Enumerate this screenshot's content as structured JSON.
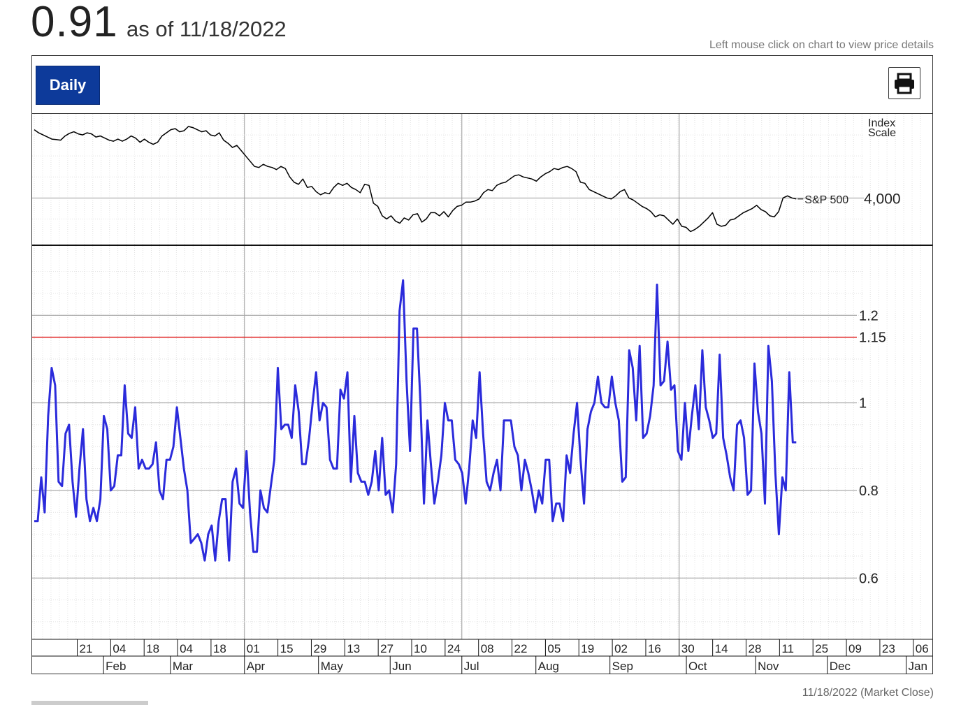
{
  "header": {
    "value": "0.91",
    "as_of": "as of 11/18/2022",
    "hint": "Left mouse click on chart to view price details"
  },
  "toolbar": {
    "daily_label": "Daily",
    "print_icon": "printer-icon"
  },
  "footer": {
    "note": "11/18/2022 (Market Close)"
  },
  "colors": {
    "indicator_line": "#2b2bdb",
    "threshold_line": "#e02020",
    "sp500_line": "#000000",
    "button": "#0d3a9a"
  },
  "chart_data": [
    {
      "type": "line",
      "panel": "top",
      "title": "",
      "scale_label_line1": "Index",
      "scale_label_line2": "Scale",
      "series": [
        {
          "name": "S&P 500",
          "values": [
            4650,
            4620,
            4600,
            4580,
            4560,
            4555,
            4550,
            4590,
            4615,
            4630,
            4610,
            4600,
            4620,
            4610,
            4580,
            4590,
            4570,
            4550,
            4540,
            4560,
            4540,
            4560,
            4590,
            4570,
            4530,
            4560,
            4530,
            4510,
            4530,
            4590,
            4620,
            4650,
            4660,
            4630,
            4640,
            4680,
            4670,
            4650,
            4630,
            4640,
            4600,
            4590,
            4620,
            4550,
            4520,
            4480,
            4500,
            4450,
            4400,
            4350,
            4300,
            4290,
            4320,
            4300,
            4290,
            4270,
            4300,
            4280,
            4200,
            4150,
            4130,
            4180,
            4100,
            4110,
            4060,
            4030,
            4050,
            4040,
            4100,
            4140,
            4120,
            4140,
            4100,
            4080,
            4050,
            4130,
            4120,
            3950,
            3920,
            3830,
            3800,
            3830,
            3780,
            3760,
            3810,
            3790,
            3840,
            3850,
            3770,
            3800,
            3860,
            3860,
            3830,
            3870,
            3820,
            3880,
            3920,
            3930,
            3960,
            3960,
            3970,
            3990,
            4050,
            4080,
            4070,
            4120,
            4140,
            4150,
            4180,
            4210,
            4220,
            4200,
            4190,
            4180,
            4160,
            4200,
            4230,
            4250,
            4280,
            4270,
            4290,
            4300,
            4280,
            4250,
            4150,
            4140,
            4080,
            4060,
            4040,
            4020,
            4000,
            3990,
            4020,
            4060,
            4080,
            4000,
            3980,
            3950,
            3920,
            3900,
            3870,
            3820,
            3840,
            3830,
            3790,
            3750,
            3800,
            3730,
            3720,
            3680,
            3700,
            3730,
            3770,
            3810,
            3860,
            3750,
            3730,
            3740,
            3790,
            3800,
            3830,
            3860,
            3880,
            3900,
            3930,
            3890,
            3870,
            3830,
            3820,
            3870,
            4000,
            4020,
            4000,
            3990
          ],
          "x_start": "2022-01-03",
          "x_end": "2022-11-18"
        }
      ],
      "y_ticks": [
        "4,000"
      ],
      "annotation": "S&P 500"
    },
    {
      "type": "line",
      "panel": "bottom",
      "series": [
        {
          "name": "",
          "values": [
            0.73,
            0.73,
            0.83,
            0.75,
            0.97,
            1.08,
            1.04,
            0.82,
            0.81,
            0.93,
            0.95,
            0.82,
            0.74,
            0.85,
            0.94,
            0.78,
            0.73,
            0.76,
            0.73,
            0.78,
            0.97,
            0.94,
            0.8,
            0.81,
            0.88,
            0.88,
            1.04,
            0.93,
            0.92,
            0.99,
            0.85,
            0.87,
            0.85,
            0.85,
            0.86,
            0.91,
            0.8,
            0.78,
            0.87,
            0.87,
            0.9,
            0.99,
            0.92,
            0.85,
            0.8,
            0.68,
            0.69,
            0.7,
            0.68,
            0.64,
            0.7,
            0.72,
            0.64,
            0.73,
            0.78,
            0.78,
            0.64,
            0.82,
            0.85,
            0.77,
            0.76,
            0.89,
            0.75,
            0.66,
            0.66,
            0.8,
            0.76,
            0.75,
            0.81,
            0.87,
            1.08,
            0.94,
            0.95,
            0.95,
            0.92,
            1.04,
            0.98,
            0.86,
            0.86,
            0.92,
            1.0,
            1.07,
            0.96,
            1.0,
            0.99,
            0.87,
            0.85,
            0.85,
            1.03,
            1.01,
            1.07,
            0.82,
            0.97,
            0.84,
            0.82,
            0.82,
            0.79,
            0.82,
            0.89,
            0.8,
            0.92,
            0.79,
            0.8,
            0.75,
            0.86,
            1.21,
            1.28,
            1.05,
            0.89,
            1.17,
            1.17,
            1.0,
            0.77,
            0.96,
            0.86,
            0.77,
            0.82,
            0.88,
            1.0,
            0.96,
            0.96,
            0.87,
            0.86,
            0.84,
            0.77,
            0.85,
            0.96,
            0.92,
            1.07,
            0.93,
            0.82,
            0.8,
            0.84,
            0.87,
            0.8,
            0.96,
            0.96,
            0.96,
            0.9,
            0.88,
            0.8,
            0.87,
            0.84,
            0.8,
            0.75,
            0.8,
            0.77,
            0.87,
            0.87,
            0.73,
            0.77,
            0.77,
            0.73,
            0.88,
            0.84,
            0.93,
            1.0,
            0.87,
            0.77,
            0.94,
            0.98,
            1.0,
            1.06,
            1.0,
            0.99,
            0.99,
            1.06,
            1.0,
            0.96,
            0.82,
            0.83,
            1.12,
            1.08,
            0.96,
            1.13,
            0.92,
            0.93,
            0.97,
            1.04,
            1.27,
            1.04,
            1.05,
            1.14,
            1.03,
            1.04,
            0.89,
            0.87,
            1.0,
            0.89,
            0.97,
            1.04,
            0.94,
            1.12,
            0.99,
            0.96,
            0.92,
            0.93,
            1.11,
            0.92,
            0.88,
            0.83,
            0.8,
            0.95,
            0.96,
            0.92,
            0.79,
            0.8,
            1.09,
            0.98,
            0.93,
            0.77,
            1.13,
            1.05,
            0.84,
            0.7,
            0.83,
            0.8,
            1.07,
            0.91,
            0.91
          ],
          "x_start": "2022-01-03",
          "x_end": "2022-11-18"
        }
      ],
      "y_ticks": [
        1.2,
        1.15,
        1,
        0.8,
        0.6
      ],
      "ylim": [
        0.46,
        1.36
      ],
      "threshold": 1.15,
      "xlim": [
        "2022-01-03",
        "2023-01-09"
      ],
      "week_ticks": [
        "21",
        "04",
        "18",
        "04",
        "18",
        "01",
        "15",
        "29",
        "13",
        "27",
        "10",
        "24",
        "08",
        "22",
        "05",
        "19",
        "02",
        "16",
        "30",
        "14",
        "28",
        "11",
        "25",
        "09",
        "23",
        "06"
      ],
      "week_tick_dates": [
        "2022-01-21",
        "2022-02-04",
        "2022-02-18",
        "2022-03-04",
        "2022-03-18",
        "2022-04-01",
        "2022-04-15",
        "2022-04-29",
        "2022-05-13",
        "2022-05-27",
        "2022-06-10",
        "2022-06-24",
        "2022-07-08",
        "2022-07-22",
        "2022-08-05",
        "2022-08-19",
        "2022-09-02",
        "2022-09-16",
        "2022-09-30",
        "2022-10-14",
        "2022-10-28",
        "2022-11-11",
        "2022-11-25",
        "2022-12-09",
        "2022-12-23",
        "2023-01-06"
      ],
      "month_ticks": [
        "Feb",
        "Mar",
        "Apr",
        "May",
        "Jun",
        "Jul",
        "Aug",
        "Sep",
        "Oct",
        "Nov",
        "Dec",
        "Jan"
      ],
      "month_tick_dates": [
        "2022-02-01",
        "2022-03-01",
        "2022-04-01",
        "2022-05-02",
        "2022-06-01",
        "2022-07-01",
        "2022-08-01",
        "2022-09-01",
        "2022-10-03",
        "2022-11-01",
        "2022-12-01",
        "2023-01-03"
      ],
      "quarter_dates": [
        "2022-04-01",
        "2022-07-01",
        "2022-09-30"
      ]
    }
  ]
}
